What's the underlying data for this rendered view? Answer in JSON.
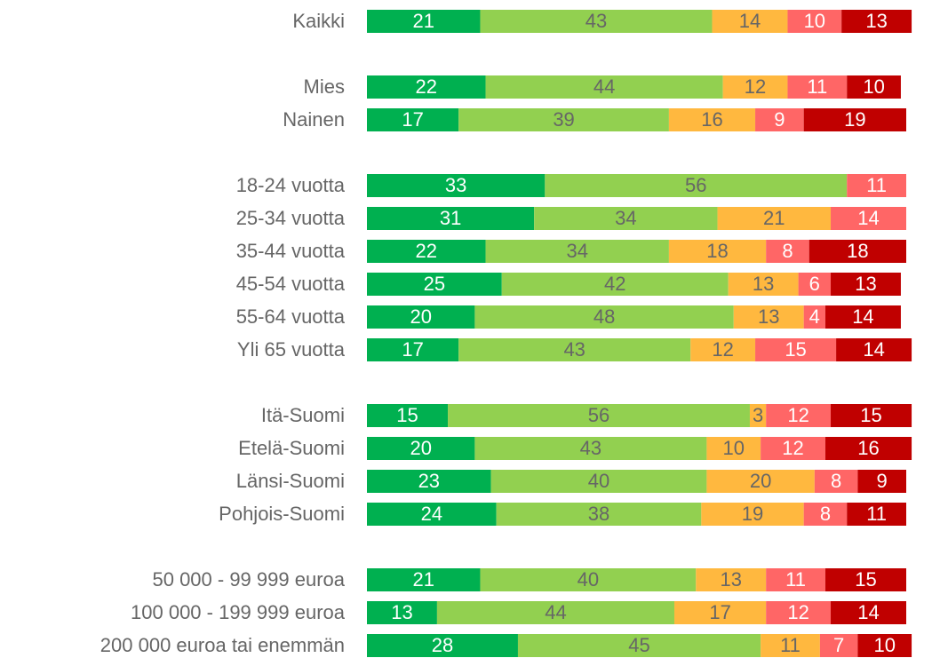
{
  "chart_data": {
    "type": "stacked-barh",
    "categories": [
      "Kaikki",
      null,
      "Mies",
      "Nainen",
      null,
      "18-24 vuotta",
      "25-34 vuotta",
      "35-44 vuotta",
      "45-54 vuotta",
      "55-64 vuotta",
      "Yli 65 vuotta",
      null,
      "Itä-Suomi",
      "Etelä-Suomi",
      "Länsi-Suomi",
      "Pohjois-Suomi",
      null,
      "50 000 - 99 999 euroa",
      "100 000 - 199 999 euroa",
      "200 000 euroa tai enemmän"
    ],
    "series": [
      {
        "color": "#00b050",
        "label_color": "#ffffff",
        "values": [
          21,
          null,
          22,
          17,
          null,
          33,
          31,
          22,
          25,
          20,
          17,
          null,
          15,
          20,
          23,
          24,
          null,
          21,
          13,
          28
        ]
      },
      {
        "color": "#92d050",
        "label_color": "#666666",
        "values": [
          43,
          null,
          44,
          39,
          null,
          56,
          34,
          34,
          42,
          48,
          43,
          null,
          56,
          43,
          40,
          38,
          null,
          40,
          44,
          45
        ]
      },
      {
        "color": "#ffb83f",
        "label_color": "#666666",
        "values": [
          14,
          null,
          12,
          16,
          null,
          null,
          21,
          18,
          13,
          13,
          12,
          null,
          3,
          10,
          20,
          19,
          null,
          13,
          17,
          11
        ]
      },
      {
        "color": "#ff6666",
        "label_color": "#ffffff",
        "values": [
          10,
          null,
          11,
          9,
          null,
          11,
          14,
          8,
          6,
          4,
          15,
          null,
          12,
          12,
          8,
          8,
          null,
          11,
          12,
          7
        ]
      },
      {
        "color": "#c00000",
        "label_color": "#ffffff",
        "values": [
          13,
          null,
          10,
          19,
          null,
          null,
          null,
          18,
          13,
          14,
          14,
          null,
          15,
          16,
          9,
          11,
          null,
          15,
          14,
          10
        ]
      }
    ]
  }
}
